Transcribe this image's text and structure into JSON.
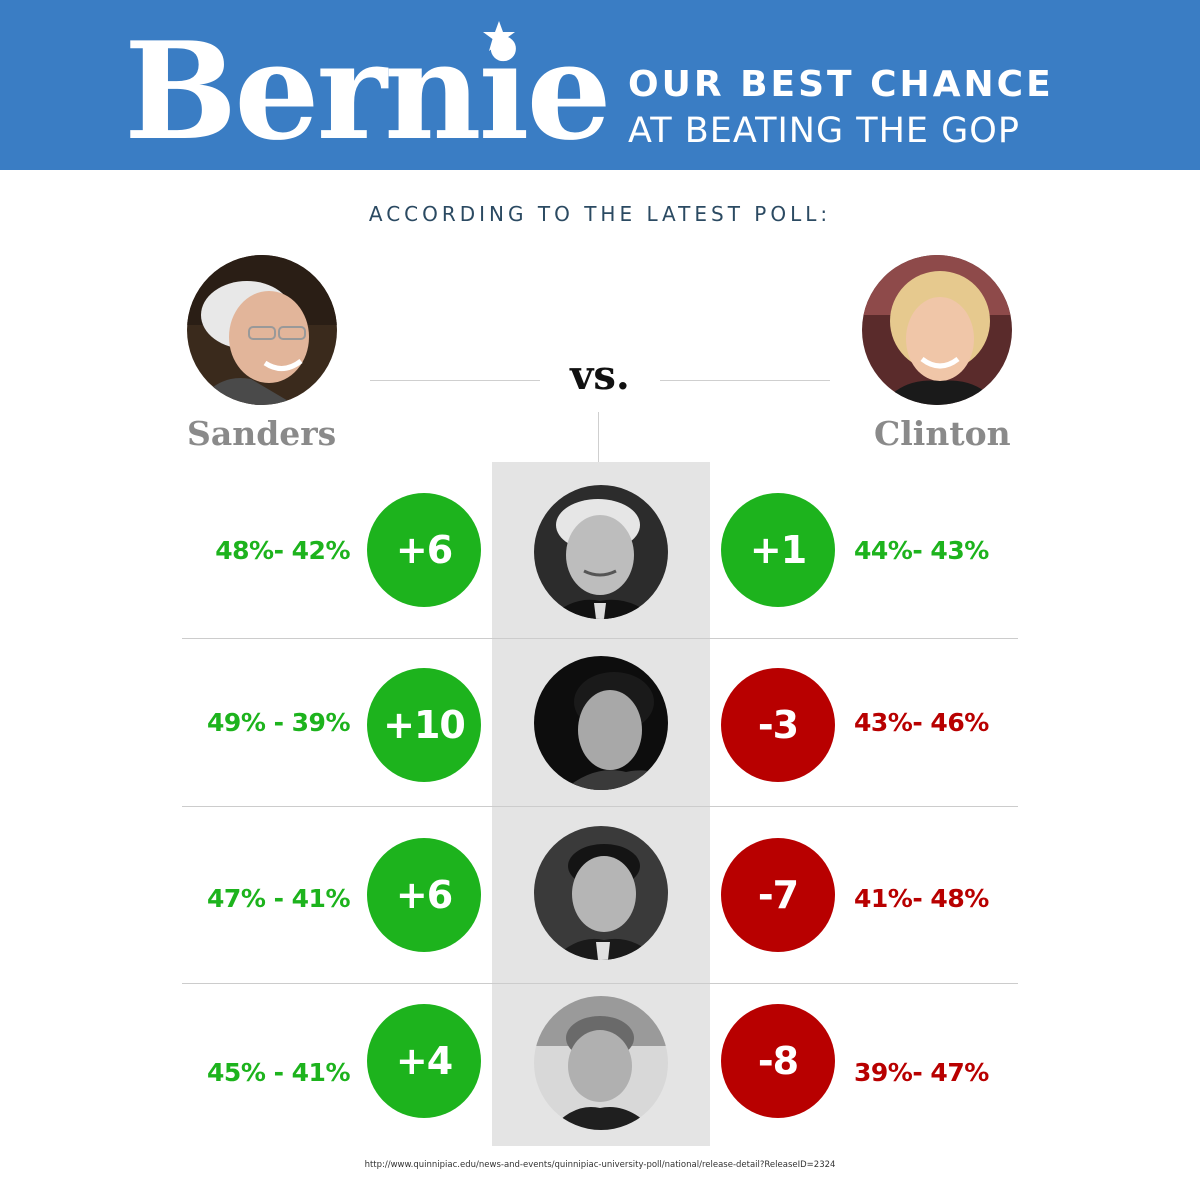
{
  "header": {
    "title": "Bernie",
    "tagline_line1": "OUR BEST CHANCE",
    "tagline_line2": "AT BEATING THE GOP",
    "background_color": "#3a7dc4"
  },
  "subtitle": "ACCORDING TO THE LATEST POLL:",
  "vs_label": "vs.",
  "candidates": {
    "left": {
      "name": "Sanders"
    },
    "right": {
      "name": "Clinton"
    }
  },
  "source": "http://www.quinnipiac.edu/news-and-events/quinnipiac-university-poll/national/release-detail?ReleaseID=2324",
  "colors": {
    "positive": "#1db31d",
    "negative": "#b80000",
    "name_gray": "#8a8a8a"
  },
  "chart_data": {
    "type": "table",
    "rows": [
      {
        "sanders_label": "48%- 42%",
        "sanders_margin": "+6",
        "sanders_value": 6,
        "clinton_label": "44%- 43%",
        "clinton_margin": "+1",
        "clinton_value": 1
      },
      {
        "sanders_label": "49% - 39%",
        "sanders_margin": "+10",
        "sanders_value": 10,
        "clinton_label": "43%- 46%",
        "clinton_margin": "-3",
        "clinton_value": -3
      },
      {
        "sanders_label": "47% - 41%",
        "sanders_margin": "+6",
        "sanders_value": 6,
        "clinton_label": "41%- 48%",
        "clinton_margin": "-7",
        "clinton_value": -7
      },
      {
        "sanders_label": "45% - 41%",
        "sanders_margin": "+4",
        "sanders_value": 4,
        "clinton_label": "39%- 47%",
        "clinton_margin": "-8",
        "clinton_value": -8
      }
    ]
  }
}
